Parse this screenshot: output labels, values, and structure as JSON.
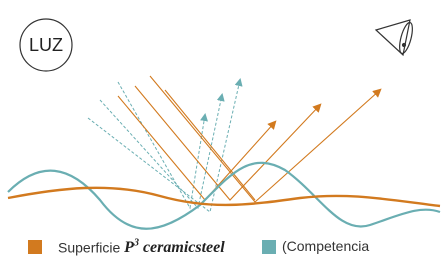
{
  "badge": "LUZ",
  "legend": [
    {
      "text": "Superficie",
      "brand": {
        "letter": "P",
        "superscript": "3",
        "name": "ceramicsteel"
      }
    },
    {
      "text": "(Competencia"
    }
  ]
}
